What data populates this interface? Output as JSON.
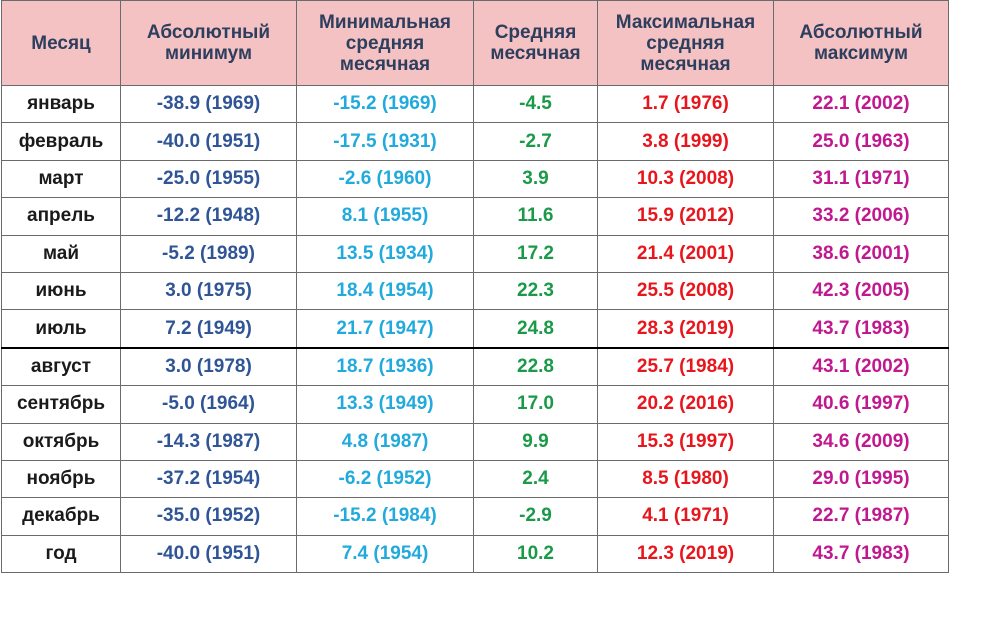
{
  "table": {
    "headers": [
      "Месяц",
      "Абсолютный минимум",
      "Минимальная средняя месячная",
      "Средняя месячная",
      "Максимальная средняя месячная",
      "Абсолютный максимум"
    ],
    "rows": [
      [
        "январь",
        "-38.9 (1969)",
        "-15.2 (1969)",
        "-4.5",
        "1.7 (1976)",
        "22.1 (2002)"
      ],
      [
        "февраль",
        "-40.0 (1951)",
        "-17.5 (1931)",
        "-2.7",
        "3.8 (1999)",
        "25.0 (1963)"
      ],
      [
        "март",
        "-25.0 (1955)",
        "-2.6 (1960)",
        "3.9",
        "10.3 (2008)",
        "31.1 (1971)"
      ],
      [
        "апрель",
        "-12.2 (1948)",
        "8.1 (1955)",
        "11.6",
        "15.9 (2012)",
        "33.2 (2006)"
      ],
      [
        "май",
        "-5.2 (1989)",
        "13.5 (1934)",
        "17.2",
        "21.4 (2001)",
        "38.6 (2001)"
      ],
      [
        "июнь",
        "3.0 (1975)",
        "18.4 (1954)",
        "22.3",
        "25.5 (2008)",
        "42.3 (2005)"
      ],
      [
        "июль",
        "7.2 (1949)",
        "21.7 (1947)",
        "24.8",
        "28.3 (2019)",
        "43.7 (1983)"
      ],
      [
        "август",
        "3.0 (1978)",
        "18.7 (1936)",
        "22.8",
        "25.7 (1984)",
        "43.1 (2002)"
      ],
      [
        "сентябрь",
        "-5.0 (1964)",
        "13.3 (1949)",
        "17.0",
        "20.2 (2016)",
        "40.6 (1997)"
      ],
      [
        "октябрь",
        "-14.3 (1987)",
        "4.8 (1987)",
        "9.9",
        "15.3 (1997)",
        "34.6 (2009)"
      ],
      [
        "ноябрь",
        "-37.2 (1954)",
        "-6.2 (1952)",
        "2.4",
        "8.5 (1980)",
        "29.0 (1995)"
      ],
      [
        "декабрь",
        "-35.0 (1952)",
        "-15.2 (1984)",
        "-2.9",
        "4.1 (1971)",
        "22.7 (1987)"
      ],
      [
        "год",
        "-40.0 (1951)",
        "7.4 (1954)",
        "10.2",
        "12.3 (2019)",
        "43.7 (1983)"
      ]
    ]
  },
  "colors": {
    "header_background": "#f4c2c2",
    "header_text": "#2e3e5e",
    "month_text": "#1a1a1a",
    "absolute_minimum": "#2f5597",
    "minimal_mean_monthly": "#22aadd",
    "mean_monthly": "#1a9a48",
    "maximal_mean_monthly": "#e8161c",
    "absolute_maximum": "#c0188f"
  }
}
